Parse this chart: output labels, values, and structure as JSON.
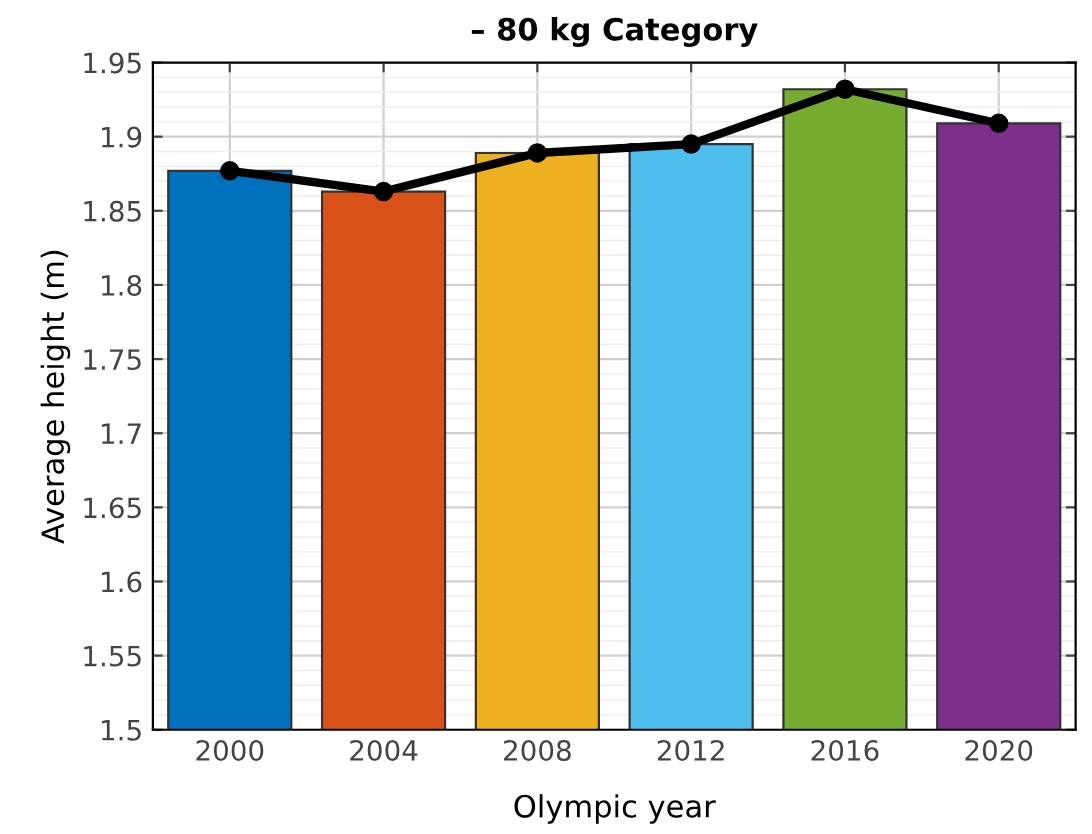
{
  "chart_data": {
    "type": "bar",
    "title": "– 80 kg Category",
    "xlabel": "Olympic year",
    "ylabel": "Average height (m)",
    "categories": [
      "2000",
      "2004",
      "2008",
      "2012",
      "2016",
      "2020"
    ],
    "series": [
      {
        "colors": [
          "#0072bd",
          "#d95319",
          "#edb120",
          "#4dbeee",
          "#77ac30",
          "#7e2f8e"
        ],
        "values": [
          1.877,
          1.863,
          1.889,
          1.895,
          1.932,
          1.909
        ]
      },
      {
        "type": "line",
        "color": "#000000",
        "marker": "circle",
        "line_style": "solid",
        "values": [
          1.877,
          1.863,
          1.889,
          1.895,
          1.932,
          1.909
        ]
      }
    ],
    "ylim": [
      1.5,
      1.95
    ],
    "yticks": [
      1.5,
      1.55,
      1.6,
      1.65,
      1.7,
      1.75,
      1.8,
      1.85,
      1.9,
      1.95
    ],
    "grid": true
  }
}
